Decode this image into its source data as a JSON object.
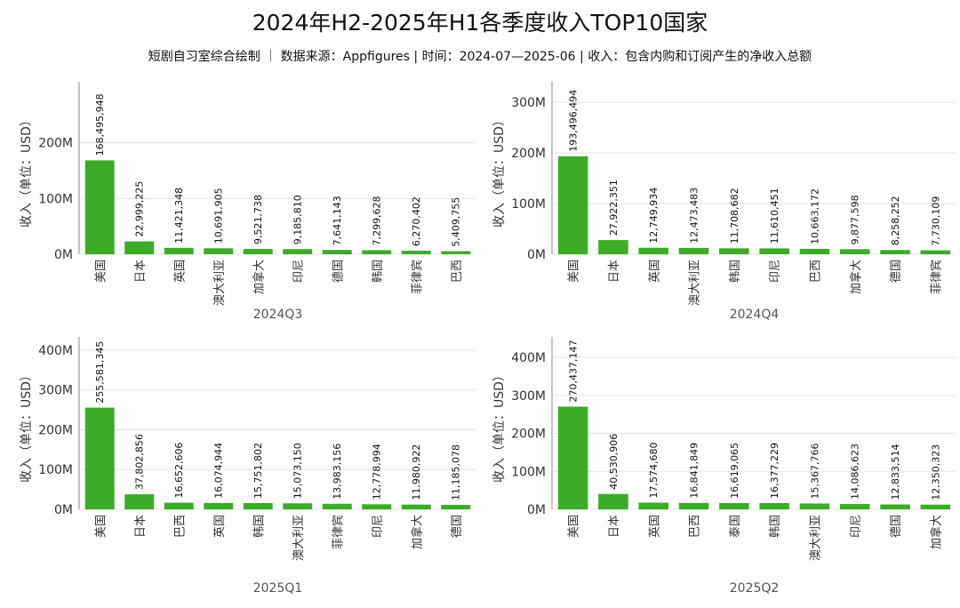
{
  "title": "2024年H2-2025年H1各季度收入TOP10国家",
  "subtitle": "短剧自习室综合绘制 ｜ 数据来源：Appfigures | 时间：2024-07—2025-06 | 收入：包含内购和订阅产生的净收入总额",
  "colors": {
    "bar": "#3cab28",
    "grid": "#e6e6e6"
  },
  "chart_data": [
    {
      "type": "bar",
      "title": "2024Q3",
      "ylabel": "收入（单位：USD）",
      "ylim": [
        0,
        300000000
      ],
      "yticks": [
        0,
        100000000,
        200000000
      ],
      "ytick_labels": [
        "0M",
        "100M",
        "200M"
      ],
      "categories": [
        "美国",
        "日本",
        "英国",
        "澳大利亚",
        "加拿大",
        "印尼",
        "德国",
        "韩国",
        "菲律宾",
        "巴西"
      ],
      "values": [
        168495948,
        22999225,
        11421348,
        10691905,
        9521738,
        9185810,
        7641143,
        7299628,
        6270402,
        5409755
      ],
      "value_labels": [
        "168,495,948",
        "22,999,225",
        "11,421,348",
        "10,691,905",
        "9,521,738",
        "9,185,810",
        "7,641,143",
        "7,299,628",
        "6,270,402",
        "5,409,755"
      ]
    },
    {
      "type": "bar",
      "title": "2024Q4",
      "ylabel": "收入（单位：USD）",
      "ylim": [
        0,
        330000000
      ],
      "yticks": [
        0,
        100000000,
        200000000,
        300000000
      ],
      "ytick_labels": [
        "0M",
        "100M",
        "200M",
        "300M"
      ],
      "categories": [
        "美国",
        "日本",
        "英国",
        "澳大利亚",
        "韩国",
        "印尼",
        "巴西",
        "加拿大",
        "德国",
        "菲律宾"
      ],
      "values": [
        193496494,
        27922351,
        12749934,
        12473483,
        11708682,
        11610451,
        10663172,
        9877598,
        8258252,
        7730109
      ],
      "value_labels": [
        "193,496,494",
        "27,922,351",
        "12,749,934",
        "12,473,483",
        "11,708,682",
        "11,610,451",
        "10,663,172",
        "9,877,598",
        "8,258,252",
        "7,730,109"
      ]
    },
    {
      "type": "bar",
      "title": "2025Q1",
      "ylabel": "收入（单位：USD）",
      "ylim": [
        0,
        420000000
      ],
      "yticks": [
        0,
        100000000,
        200000000,
        300000000,
        400000000
      ],
      "ytick_labels": [
        "0M",
        "100M",
        "200M",
        "300M",
        "400M"
      ],
      "categories": [
        "美国",
        "日本",
        "巴西",
        "英国",
        "韩国",
        "澳大利亚",
        "菲律宾",
        "印尼",
        "加拿大",
        "德国"
      ],
      "values": [
        255581345,
        37802856,
        16652606,
        16074944,
        15751802,
        15073150,
        13983156,
        12778994,
        11980922,
        11185078
      ],
      "value_labels": [
        "255,581,345",
        "37,802,856",
        "16,652,606",
        "16,074,944",
        "15,751,802",
        "15,073,150",
        "13,983,156",
        "12,778,994",
        "11,980,922",
        "11,185,078"
      ]
    },
    {
      "type": "bar",
      "title": "2025Q2",
      "ylabel": "收入（单位：USD）",
      "ylim": [
        0,
        440000000
      ],
      "yticks": [
        0,
        100000000,
        200000000,
        300000000,
        400000000
      ],
      "ytick_labels": [
        "0M",
        "100M",
        "200M",
        "300M",
        "400M"
      ],
      "categories": [
        "美国",
        "日本",
        "英国",
        "巴西",
        "泰国",
        "韩国",
        "澳大利亚",
        "印尼",
        "德国",
        "加拿大"
      ],
      "values": [
        270437147,
        40530906,
        17574680,
        16841849,
        16619065,
        16377229,
        15367766,
        14086623,
        12833514,
        12350323
      ],
      "value_labels": [
        "270,437,147",
        "40,530,906",
        "17,574,680",
        "16,841,849",
        "16,619,065",
        "16,377,229",
        "15,367,766",
        "14,086,623",
        "12,833,514",
        "12,350,323"
      ]
    }
  ]
}
